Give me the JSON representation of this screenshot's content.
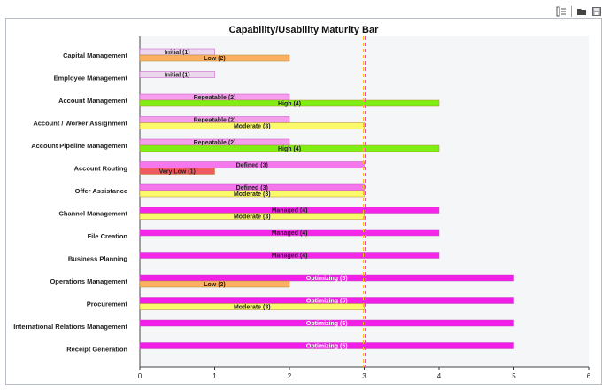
{
  "toolbar": {
    "icons": [
      "reorder-icon",
      "folder-icon",
      "save-icon"
    ]
  },
  "chart_data": {
    "type": "bar",
    "orientation": "horizontal",
    "title": "Capability/Usability Maturity Bar",
    "xlim": [
      0,
      6
    ],
    "xticks": [
      "0",
      "1",
      "2",
      "3",
      "4",
      "5",
      "6"
    ],
    "reference_lines": [
      3
    ],
    "categories": [
      "Capital Management",
      "Employee Management",
      "Account Management",
      "Account / Worker Assignment",
      "Account Pipeline Management",
      "Account Routing",
      "Offer Assistance",
      "Channel Management",
      "File Creation",
      "Business Planning",
      "Operations Management",
      "Procurement",
      "International Relations Management",
      "Receipt Generation"
    ],
    "series": [
      {
        "name": "Capability",
        "values": [
          1,
          1,
          2,
          2,
          2,
          3,
          3,
          4,
          4,
          4,
          5,
          5,
          5,
          5
        ],
        "labels": [
          "Initial (1)",
          "Initial (1)",
          "Repeatable (2)",
          "Repeatable (2)",
          "Repeatable (2)",
          "Defined (3)",
          "Defined (3)",
          "Managed (4)",
          "Managed (4)",
          "Managed (4)",
          "Optimizing (5)",
          "Optimizing (5)",
          "Optimizing (5)",
          "Optimizing (5)"
        ],
        "colors": [
          "#ecd7ef",
          "#ecd7ef",
          "#f59fec",
          "#f59fec",
          "#f59fec",
          "#f477ec",
          "#f477ec",
          "#f426e8",
          "#f426e8",
          "#f426e8",
          "#f01ee6",
          "#f01ee6",
          "#f01ee6",
          "#f01ee6"
        ],
        "label_colors": [
          "#222222",
          "#222222",
          "#222222",
          "#222222",
          "#222222",
          "#222222",
          "#222222",
          "#222222",
          "#222222",
          "#222222",
          "#ffffff",
          "#ffffff",
          "#ffffff",
          "#ffffff"
        ]
      },
      {
        "name": "Usability",
        "values": [
          2,
          null,
          4,
          3,
          4,
          1,
          3,
          3,
          null,
          null,
          2,
          3,
          null,
          null
        ],
        "labels": [
          "Low (2)",
          "",
          "High (4)",
          "Moderate (3)",
          "High (4)",
          "Very Low (1)",
          "Moderate (3)",
          "Moderate (3)",
          "",
          "",
          "Low (2)",
          "Moderate (3)",
          "",
          ""
        ],
        "colors": [
          "#fbb064",
          "",
          "#7fef13",
          "#fafa6a",
          "#7fef13",
          "#f25a62",
          "#fafa6a",
          "#fafa6a",
          "",
          "",
          "#fbb064",
          "#fafa6a",
          "",
          ""
        ]
      }
    ]
  }
}
